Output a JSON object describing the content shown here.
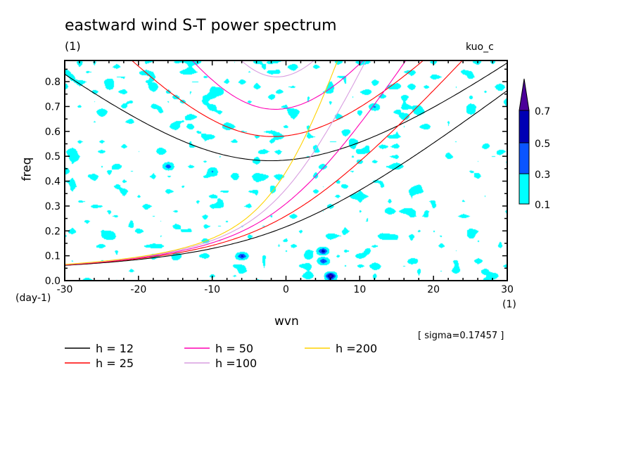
{
  "header": {
    "title": "eastward wind S-T power spectrum",
    "subtitle": "(1)",
    "model": "kuo_c"
  },
  "footer": {
    "sigma": "[ sigma=0.17457 ]"
  },
  "chart_data": {
    "type": "heatmap",
    "title": "eastward wind S-T power spectrum",
    "xlabel": "wvn",
    "ylabel": "freq",
    "xunit": "(1)",
    "yunit": "(day-1)",
    "xlim": [
      -30,
      30
    ],
    "ylim": [
      0,
      0.885
    ],
    "xticks": [
      -30,
      -20,
      -10,
      0,
      10,
      20,
      30
    ],
    "xtick_labels": [
      "-30",
      "-20",
      "-10",
      "0",
      "10",
      "20",
      "30"
    ],
    "yticks": [
      0,
      0.1,
      0.2,
      0.3,
      0.4,
      0.5,
      0.6,
      0.7,
      0.8
    ],
    "ytick_labels": [
      "0.0",
      "0.1",
      "0.2",
      "0.3",
      "0.4",
      "0.5",
      "0.6",
      "0.7",
      "0.8"
    ],
    "contour_levels": [
      0.1,
      0.3,
      0.5,
      0.7
    ],
    "contour_level_labels": [
      "0.1",
      "0.3",
      "0.5",
      "0.7"
    ],
    "contour_colors": [
      "#00ffff",
      "#0a55ff",
      "#0000b4",
      "#4b0099"
    ],
    "dispersion_curves": [
      {
        "label": "h = 12",
        "h": 12,
        "color": "#000000",
        "meridional_modes": [
          0,
          2
        ]
      },
      {
        "label": "h = 25",
        "h": 25,
        "color": "#ff0000",
        "meridional_modes": [
          0,
          2
        ]
      },
      {
        "label": "h = 50",
        "h": 50,
        "color": "#ff00b4",
        "meridional_modes": [
          0,
          2
        ]
      },
      {
        "label": "h =100",
        "h": 100,
        "color": "#d89ee0",
        "meridional_modes": [
          0,
          2
        ]
      },
      {
        "label": "h =200",
        "h": 200,
        "color": "#ffd200",
        "meridional_modes": [
          0,
          2
        ]
      }
    ]
  }
}
